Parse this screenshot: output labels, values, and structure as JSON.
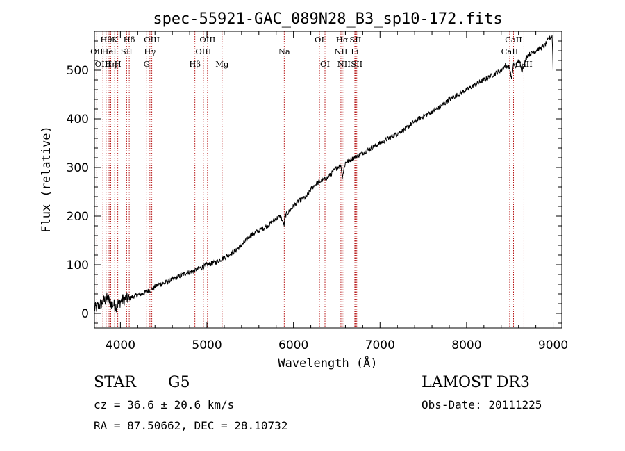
{
  "chart_data": {
    "type": "line",
    "title": "spec-55921-GAC_089N28_B3_sp10-172.fits",
    "xlabel": "Wavelength (Å)",
    "ylabel": "Flux (relative)",
    "xlim": [
      3700,
      9100
    ],
    "ylim": [
      -30,
      580
    ],
    "x_ticks": [
      4000,
      5000,
      6000,
      7000,
      8000,
      9000
    ],
    "y_ticks": [
      0,
      100,
      200,
      300,
      400,
      500
    ],
    "series": [
      {
        "name": "spectrum",
        "x": [
          3700,
          3750,
          3800,
          3850,
          3900,
          3950,
          4000,
          4050,
          4100,
          4150,
          4200,
          4250,
          4300,
          4350,
          4400,
          4450,
          4500,
          4550,
          4600,
          4650,
          4700,
          4750,
          4800,
          4850,
          4900,
          4950,
          5000,
          5050,
          5100,
          5150,
          5200,
          5300,
          5400,
          5500,
          5600,
          5700,
          5800,
          5850,
          5895,
          5900,
          5950,
          6000,
          6050,
          6100,
          6150,
          6200,
          6250,
          6300,
          6350,
          6400,
          6450,
          6500,
          6550,
          6563,
          6600,
          6650,
          6700,
          6750,
          6800,
          6900,
          7000,
          7100,
          7200,
          7300,
          7400,
          7500,
          7600,
          7700,
          7800,
          7900,
          8000,
          8100,
          8200,
          8300,
          8400,
          8450,
          8498,
          8520,
          8542,
          8560,
          8600,
          8640,
          8662,
          8700,
          8750,
          8800,
          8850,
          8900,
          8950,
          8990,
          9000
        ],
        "y": [
          10,
          15,
          25,
          30,
          20,
          15,
          25,
          30,
          30,
          35,
          38,
          40,
          45,
          48,
          55,
          60,
          62,
          66,
          70,
          74,
          78,
          82,
          85,
          88,
          92,
          95,
          100,
          102,
          105,
          110,
          115,
          125,
          140,
          160,
          170,
          180,
          195,
          200,
          180,
          200,
          210,
          220,
          230,
          235,
          240,
          255,
          265,
          270,
          275,
          280,
          290,
          300,
          305,
          280,
          310,
          315,
          320,
          325,
          330,
          340,
          350,
          360,
          370,
          380,
          395,
          405,
          415,
          425,
          440,
          450,
          460,
          470,
          480,
          490,
          500,
          510,
          505,
          480,
          515,
          505,
          520,
          500,
          510,
          530,
          535,
          540,
          545,
          550,
          565,
          570,
          500
        ]
      }
    ],
    "line_ids": [
      {
        "wavelength": 3727,
        "label": "OII",
        "row": 1
      },
      {
        "wavelength": 3798,
        "label": "OIII",
        "row": 2
      },
      {
        "wavelength": 3835,
        "label": "Hθ",
        "row": 0
      },
      {
        "wavelength": 3869,
        "label": "HeI",
        "row": 1
      },
      {
        "wavelength": 3889,
        "label": "Hη",
        "row": 2
      },
      {
        "wavelength": 3934,
        "label": "K",
        "row": 0
      },
      {
        "wavelength": 3970,
        "label": "H",
        "row": 2
      },
      {
        "wavelength": 4072,
        "label": "SII",
        "row": 1
      },
      {
        "wavelength": 4102,
        "label": "Hδ",
        "row": 0
      },
      {
        "wavelength": 4304,
        "label": "G",
        "row": 2
      },
      {
        "wavelength": 4341,
        "label": "Hγ",
        "row": 1
      },
      {
        "wavelength": 4363,
        "label": "OIII",
        "row": 0
      },
      {
        "wavelength": 4861,
        "label": "Hβ",
        "row": 2
      },
      {
        "wavelength": 4959,
        "label": "OIII",
        "row": 1
      },
      {
        "wavelength": 5007,
        "label": "OIII",
        "row": 0
      },
      {
        "wavelength": 5175,
        "label": "Mg",
        "row": 2
      },
      {
        "wavelength": 5893,
        "label": "Na",
        "row": 1
      },
      {
        "wavelength": 6300,
        "label": "OI",
        "row": 0
      },
      {
        "wavelength": 6364,
        "label": "OI",
        "row": 2
      },
      {
        "wavelength": 6548,
        "label": "NII",
        "row": 1
      },
      {
        "wavelength": 6563,
        "label": "Hα",
        "row": 0
      },
      {
        "wavelength": 6583,
        "label": "NII",
        "row": 2
      },
      {
        "wavelength": 6708,
        "label": "Li",
        "row": 1
      },
      {
        "wavelength": 6716,
        "label": "SII",
        "row": 0
      },
      {
        "wavelength": 6731,
        "label": "SII",
        "row": 2
      },
      {
        "wavelength": 8498,
        "label": "CaII",
        "row": 1
      },
      {
        "wavelength": 8542,
        "label": "CaII",
        "row": 0
      },
      {
        "wavelength": 8662,
        "label": "CaII",
        "row": 2
      }
    ]
  },
  "info": {
    "obj_class": "STAR",
    "subclass": "G5",
    "cz": "cz = 36.6 ± 20.6 km/s",
    "coords": "RA =  87.50662, DEC =  28.10732",
    "survey": "LAMOST DR3",
    "obs_date": "Obs-Date: 20111225"
  }
}
